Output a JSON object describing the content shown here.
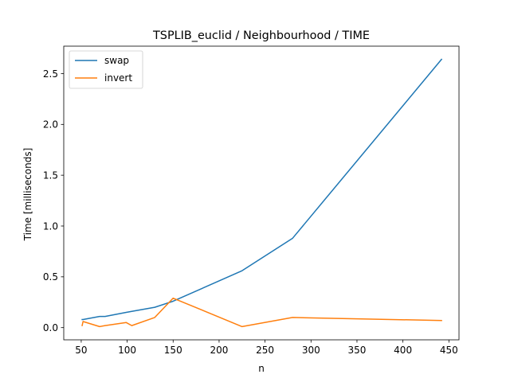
{
  "chart_data": {
    "type": "line",
    "title": "TSPLIB_euclid / Neighbourhood / TIME",
    "xlabel": "n",
    "ylabel": "Time [milliseconds]",
    "xlim": [
      31,
      461
    ],
    "ylim": [
      -0.12,
      2.77
    ],
    "xticks": [
      50,
      100,
      150,
      200,
      250,
      300,
      350,
      400,
      450
    ],
    "yticks": [
      0.0,
      0.5,
      1.0,
      1.5,
      2.0,
      2.5
    ],
    "xtick_labels": [
      "50",
      "100",
      "150",
      "200",
      "250",
      "300",
      "350",
      "400",
      "450"
    ],
    "ytick_labels": [
      "0.0",
      "0.5",
      "1.0",
      "1.5",
      "2.0",
      "2.5"
    ],
    "legend_position": "top-left",
    "grid": false,
    "series": [
      {
        "name": "swap",
        "color": "#1f77b4",
        "x": [
          51,
          52,
          70,
          76,
          99,
          105,
          130,
          150,
          225,
          280,
          442
        ],
        "y": [
          0.08,
          0.08,
          0.11,
          0.11,
          0.15,
          0.16,
          0.2,
          0.26,
          0.56,
          0.88,
          2.64
        ]
      },
      {
        "name": "invert",
        "color": "#ff7f0e",
        "x": [
          51,
          52,
          70,
          76,
          99,
          105,
          130,
          150,
          225,
          280,
          442
        ],
        "y": [
          0.02,
          0.06,
          0.01,
          0.02,
          0.05,
          0.02,
          0.1,
          0.29,
          0.01,
          0.1,
          0.07
        ]
      }
    ]
  }
}
